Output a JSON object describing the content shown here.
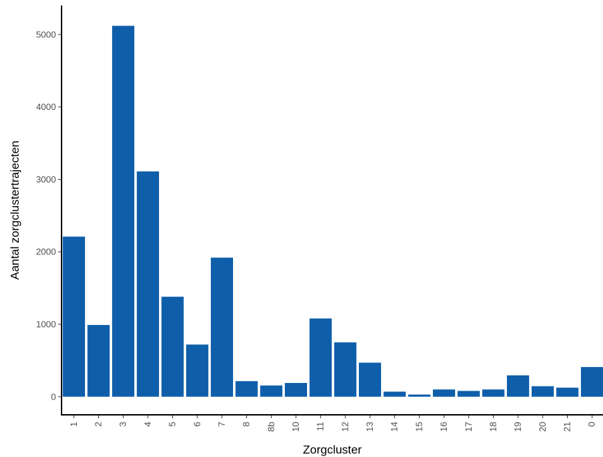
{
  "chart_data": {
    "type": "bar",
    "title": "",
    "xlabel": "Zorgcluster",
    "ylabel": "Aantal zorgclustertrajecten",
    "categories": [
      "1",
      "2",
      "3",
      "4",
      "5",
      "6",
      "7",
      "8",
      "8b",
      "10",
      "11",
      "12",
      "13",
      "14",
      "15",
      "16",
      "17",
      "18",
      "19",
      "20",
      "21",
      "0"
    ],
    "values": [
      2210,
      990,
      5120,
      3110,
      1380,
      720,
      1920,
      215,
      155,
      190,
      1080,
      750,
      470,
      70,
      30,
      100,
      80,
      100,
      295,
      145,
      125,
      410
    ],
    "ylim": [
      -250,
      5400
    ],
    "yticks": [
      0,
      1000,
      2000,
      3000,
      4000,
      5000
    ],
    "bar_color": "#0E5EAA",
    "grid": false,
    "legend": "none"
  }
}
